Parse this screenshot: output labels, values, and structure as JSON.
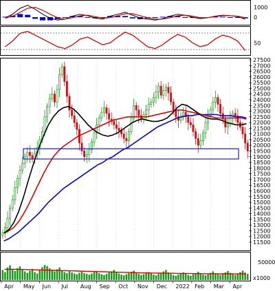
{
  "colors": {
    "background": "#ffffff",
    "candle_up": "#1a9a1a",
    "candle_down": "#d01010",
    "ma_short": "#000000",
    "ma_mid": "#e00000",
    "ma_long": "#0000e0",
    "support_box": "#1c1cc8",
    "volume_bar": "#1a9a1a",
    "volume_ma": "#e00000",
    "macd_hist": "#0000e0",
    "macd_signal": "#e00000",
    "rsi_line": "#e00000"
  },
  "chart_data": [
    {
      "type": "line",
      "panel": "macd",
      "y_ticks": [
        "1000",
        "0"
      ],
      "series": [
        {
          "role": "macd",
          "values": [
            -50,
            300,
            900,
            1200,
            800,
            300,
            -100,
            -300,
            -200,
            100,
            300,
            150,
            -100,
            -200,
            100,
            300,
            500,
            200,
            -100,
            -200,
            -300,
            -150,
            100,
            300,
            200,
            0,
            -150,
            -50,
            100,
            200,
            150,
            50,
            -200
          ]
        },
        {
          "role": "signal",
          "values": [
            -100,
            100,
            500,
            900,
            1000,
            700,
            300,
            -50,
            -200,
            -50,
            150,
            200,
            50,
            -100,
            -50,
            150,
            350,
            350,
            150,
            -50,
            -200,
            -200,
            -50,
            150,
            200,
            100,
            -50,
            -50,
            50,
            150,
            150,
            100,
            -50
          ]
        }
      ]
    },
    {
      "type": "line",
      "panel": "rsi",
      "y_ticks": [
        "50"
      ],
      "series": [
        {
          "role": "rsi",
          "values": [
            40,
            55,
            75,
            80,
            70,
            60,
            50,
            40,
            35,
            45,
            60,
            65,
            55,
            45,
            50,
            65,
            78,
            70,
            55,
            40,
            35,
            45,
            60,
            72,
            65,
            50,
            40,
            45,
            60,
            70,
            65,
            55,
            30
          ]
        }
      ]
    },
    {
      "type": "candlestick",
      "panel": "price",
      "y_range": [
        11500,
        27500
      ],
      "y_ticks": [
        "27500",
        "27000",
        "26500",
        "26000",
        "25500",
        "25000",
        "24500",
        "24000",
        "23500",
        "23000",
        "22500",
        "22000",
        "21500",
        "21000",
        "20500",
        "20000",
        "19500",
        "19000",
        "18500",
        "18000",
        "17500",
        "17000",
        "16500",
        "16000",
        "15500",
        "15000",
        "14500",
        "14000",
        "13500",
        "13000",
        "12500",
        "12000",
        "11500"
      ],
      "x_labels": [
        "Apr",
        "May",
        "Jun",
        "Jul",
        "Aug",
        "Sep",
        "Oct",
        "Nov",
        "Dec",
        "2022",
        "Feb",
        "Mar",
        "Apr"
      ],
      "closes": [
        12300,
        12800,
        13600,
        14500,
        15200,
        16300,
        17100,
        17800,
        18400,
        19000,
        19400,
        19100,
        18800,
        19300,
        19800,
        20500,
        21200,
        22500,
        23400,
        24100,
        24500,
        23800,
        24900,
        26200,
        26900,
        25600,
        24300,
        23100,
        22600,
        22000,
        21400,
        20200,
        19500,
        19000,
        19200,
        19600,
        20300,
        21100,
        21800,
        22400,
        22900,
        23300,
        22800,
        22300,
        22100,
        21800,
        21500,
        21300,
        21000,
        20600,
        20400,
        21200,
        22400,
        23500,
        23100,
        22600,
        22300,
        22700,
        23100,
        23600,
        23800,
        24200,
        24700,
        25200,
        24400,
        24800,
        25100,
        24600,
        23800,
        23100,
        22500,
        22200,
        22600,
        22900,
        22500,
        22000,
        21800,
        21200,
        20600,
        20000,
        20400,
        21100,
        22000,
        22600,
        23100,
        23800,
        24200,
        23600,
        22800,
        22300,
        21600,
        21900,
        22400,
        22800,
        22600,
        22000,
        21600,
        21000,
        20200,
        19500
      ],
      "highlight_zone": [
        18800,
        19700
      ],
      "series": [
        {
          "role": "ma_short",
          "values": [
            12300,
            12600,
            13200,
            14200,
            15500,
            17000,
            18400,
            19700,
            20800,
            21800,
            22500,
            23000,
            23300,
            23400,
            23200,
            22800,
            22300,
            21800,
            21400,
            21100,
            20900,
            20800,
            20900,
            21100,
            21400,
            21700,
            22000,
            22200,
            22300,
            22200,
            22100,
            22100,
            22200,
            22400,
            22800,
            23300,
            23600,
            23500,
            23200,
            22900,
            22600,
            22400,
            22300,
            22300,
            22200,
            22000,
            21900,
            21800,
            21800,
            21900
          ]
        },
        {
          "role": "ma_mid",
          "values": [
            12300,
            12500,
            12800,
            13300,
            14000,
            14800,
            15700,
            16600,
            17500,
            18300,
            19000,
            19500,
            19900,
            20200,
            20500,
            20800,
            21000,
            21200,
            21400,
            21600,
            21800,
            22000,
            22200,
            22300,
            22400,
            22500,
            22500,
            22500,
            22500,
            22500,
            22600,
            22700,
            22800,
            22900,
            23000,
            23100,
            23100,
            23000,
            22900,
            22800,
            22700,
            22600,
            22500,
            22400,
            22400,
            22400,
            22400,
            22400,
            22400,
            22300
          ]
        },
        {
          "role": "ma_long",
          "values": [
            11600,
            11800,
            12100,
            12400,
            12800,
            13200,
            13600,
            14000,
            14500,
            15000,
            15400,
            15800,
            16200,
            16500,
            16800,
            17100,
            17400,
            17700,
            18000,
            18300,
            18500,
            18800,
            19000,
            19300,
            19600,
            19800,
            20100,
            20400,
            20700,
            21000,
            21300,
            21600,
            21800,
            22000,
            22200,
            22400,
            22500,
            22600,
            22600,
            22700,
            22700,
            22700,
            22700,
            22700,
            22600,
            22600,
            22600,
            22500,
            22500,
            22400
          ]
        }
      ]
    },
    {
      "type": "bar",
      "panel": "volume",
      "y_ticks": [
        "50000"
      ],
      "unit_label": "x1000",
      "values": [
        28000,
        22000,
        35000,
        41000,
        30000,
        25000,
        33000,
        38000,
        29000,
        24000,
        20000,
        26000,
        31000,
        22000,
        18000,
        27000,
        36000,
        42000,
        39000,
        33000,
        28000,
        24000,
        30000,
        35000,
        27000,
        22000,
        19000,
        24000,
        21000,
        18000,
        16000,
        20000,
        23000,
        19000,
        17000,
        15000,
        18000,
        22000,
        25000,
        19000,
        16000,
        14000,
        17000,
        21000,
        24000,
        28000,
        22000,
        18000,
        15000,
        13000,
        16000,
        19000,
        23000,
        26000,
        20000,
        17000,
        14000,
        16000,
        19000,
        22000,
        18000,
        15000,
        13000,
        17000,
        20000,
        24000,
        28000,
        21000,
        17000,
        14000,
        12000,
        15000,
        18000,
        21000,
        17000,
        14000,
        12000,
        16000,
        19000,
        23000,
        18000,
        15000,
        13000,
        16000,
        20000,
        24000,
        19000,
        16000,
        14000,
        17000,
        21000,
        25000,
        20000,
        16000,
        14000,
        18000,
        22000,
        26000,
        21000,
        17000
      ],
      "ma_values": [
        30000,
        30000,
        30000,
        29500,
        29000,
        28500,
        28000,
        27500,
        27000,
        26500,
        26000,
        25500,
        25000,
        24500,
        24000,
        23500,
        23000,
        22500,
        22000,
        21500,
        21000,
        20500,
        20000,
        19800,
        19500,
        19200,
        19000,
        18800,
        18500,
        18300,
        18000,
        17800,
        17600,
        17500,
        17500,
        17400,
        17300,
        17200,
        17100,
        17000
      ]
    }
  ]
}
